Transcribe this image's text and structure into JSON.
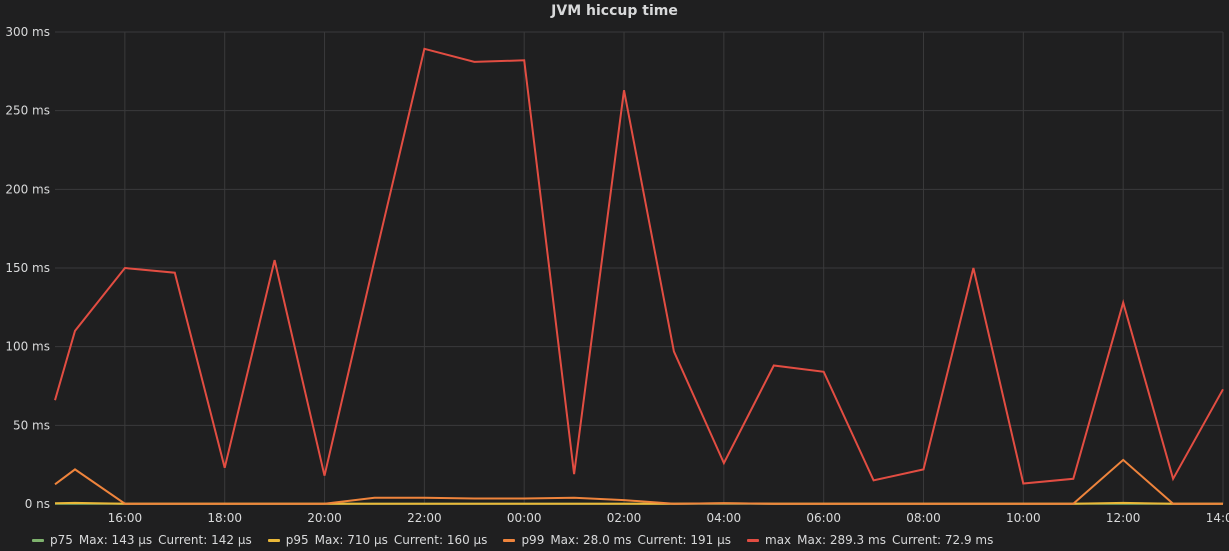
{
  "chart_data": {
    "type": "line",
    "title": "JVM hiccup time",
    "xlabel": "",
    "ylabel": "",
    "ylim": [
      0,
      300
    ],
    "y_ticks": [
      "0 ns",
      "50 ms",
      "100 ms",
      "150 ms",
      "200 ms",
      "250 ms",
      "300 ms"
    ],
    "y_tick_values": [
      0,
      50,
      100,
      150,
      200,
      250,
      300
    ],
    "x_tick_labels": [
      "16:00",
      "18:00",
      "20:00",
      "22:00",
      "00:00",
      "02:00",
      "04:00",
      "06:00",
      "08:00",
      "10:00",
      "12:00",
      "14:00"
    ],
    "x_tick_hours": [
      16,
      18,
      20,
      22,
      24,
      26,
      28,
      30,
      32,
      34,
      36,
      38
    ],
    "xlim": [
      14.6,
      38.0
    ],
    "grid": true,
    "legend_position": "bottom",
    "series": [
      {
        "name": "p75",
        "color": "#7eb26d",
        "max_label": "Max: 143 µs",
        "current_label": "Current: 142 µs",
        "x": [
          14.6,
          15,
          16,
          17,
          18,
          19,
          20,
          21,
          22,
          23,
          24,
          25,
          26,
          27,
          28,
          29,
          30,
          31,
          32,
          33,
          34,
          35,
          36,
          37,
          38
        ],
        "values": [
          0.1,
          0.14,
          0.1,
          0.1,
          0.1,
          0.1,
          0.1,
          0.1,
          0.1,
          0.1,
          0.1,
          0.1,
          0.1,
          0.1,
          0.1,
          0.1,
          0.1,
          0.1,
          0.1,
          0.1,
          0.1,
          0.1,
          0.14,
          0.1,
          0.14
        ]
      },
      {
        "name": "p95",
        "color": "#eab839",
        "max_label": "Max: 710 µs",
        "current_label": "Current: 160 µs",
        "x": [
          14.6,
          15,
          16,
          17,
          18,
          19,
          20,
          21,
          22,
          23,
          24,
          25,
          26,
          27,
          28,
          29,
          30,
          31,
          32,
          33,
          34,
          35,
          36,
          37,
          38
        ],
        "values": [
          0.5,
          0.7,
          0.2,
          0.2,
          0.2,
          0.2,
          0.2,
          0.2,
          0.2,
          0.2,
          0.2,
          0.2,
          0.2,
          0.2,
          0.5,
          0.2,
          0.2,
          0.2,
          0.2,
          0.2,
          0.2,
          0.2,
          0.7,
          0.2,
          0.16
        ]
      },
      {
        "name": "p99",
        "color": "#ef843c",
        "max_label": "Max: 28.0 ms",
        "current_label": "Current: 191 µs",
        "x": [
          14.6,
          15,
          16,
          17,
          18,
          19,
          20,
          21,
          22,
          23,
          24,
          25,
          26,
          27,
          28,
          29,
          30,
          31,
          32,
          33,
          34,
          35,
          36,
          37,
          38
        ],
        "values": [
          12.5,
          22,
          0.2,
          0.2,
          0.2,
          0.2,
          0.2,
          4.0,
          4.0,
          3.5,
          3.5,
          4.0,
          2.5,
          0.2,
          0.5,
          0.2,
          0.2,
          0.2,
          0.2,
          0.2,
          0.2,
          0.2,
          28.0,
          0.2,
          0.19
        ]
      },
      {
        "name": "max",
        "color": "#e24d42",
        "max_label": "Max: 289.3 ms",
        "current_label": "Current: 72.9 ms",
        "x": [
          14.6,
          15,
          16,
          17,
          18,
          19,
          20,
          21,
          22,
          23,
          24,
          25,
          26,
          27,
          28,
          29,
          30,
          31,
          32,
          33,
          34,
          35,
          36,
          37,
          38
        ],
        "values": [
          66,
          110,
          150,
          147,
          23,
          155,
          18,
          155,
          289.3,
          281,
          282,
          19,
          263,
          97,
          26,
          88,
          84,
          15,
          22,
          150,
          13,
          16,
          128,
          16,
          72.9
        ]
      }
    ]
  }
}
